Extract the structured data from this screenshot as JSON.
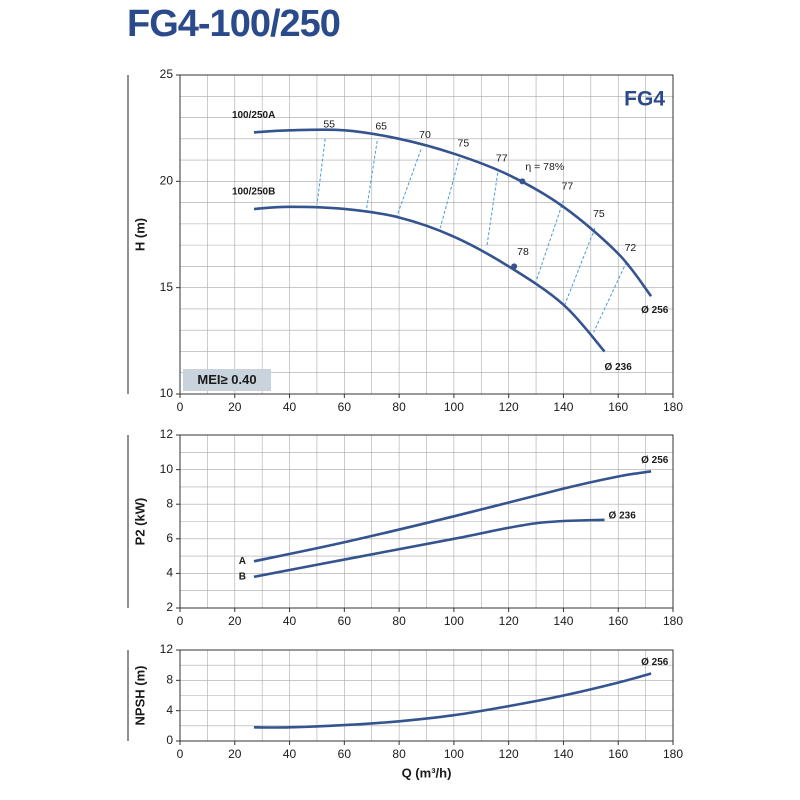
{
  "title": "FG4-100/250",
  "chart_data": [
    {
      "type": "line",
      "ylabel": "H (m)",
      "badge": "FG4",
      "note": "MEI≥ 0.40",
      "xlim": [
        0,
        180
      ],
      "xticks": [
        0,
        20,
        40,
        60,
        80,
        100,
        120,
        140,
        160,
        180
      ],
      "ylim": [
        10,
        25
      ],
      "yticks": [
        10,
        15,
        20,
        25
      ],
      "grid": true,
      "grid_minor": [
        10,
        1
      ],
      "color": "#35548f",
      "series": [
        {
          "name": "100/250A",
          "end_label": "Ø 256",
          "x": [
            27,
            40,
            60,
            80,
            100,
            120,
            140,
            160,
            172
          ],
          "values": [
            22.3,
            22.4,
            22.4,
            22.0,
            21.3,
            20.3,
            18.8,
            16.6,
            14.6
          ]
        },
        {
          "name": "100/250B",
          "end_label": "Ø 236",
          "x": [
            27,
            40,
            60,
            80,
            100,
            120,
            140,
            155
          ],
          "values": [
            18.7,
            18.8,
            18.7,
            18.3,
            17.4,
            16.0,
            14.2,
            12.0
          ]
        }
      ],
      "efficiency_color": "#4b9bd6",
      "efficiency_lines": [
        {
          "label": "55",
          "q": [
            53,
            50
          ],
          "h": [
            22.0,
            18.9
          ]
        },
        {
          "label": "65",
          "q": [
            72,
            68
          ],
          "h": [
            21.9,
            18.6
          ]
        },
        {
          "label": "70",
          "q": [
            88,
            79
          ],
          "h": [
            21.5,
            18.3
          ]
        },
        {
          "label": "75",
          "q": [
            102,
            95
          ],
          "h": [
            21.1,
            17.8
          ]
        },
        {
          "label": "77",
          "q": [
            116,
            112
          ],
          "h": [
            20.4,
            16.9
          ]
        },
        {
          "label": "77",
          "q": [
            140,
            130
          ],
          "h": [
            19.1,
            15.3
          ]
        },
        {
          "label": "75",
          "q": [
            151.5,
            140.5
          ],
          "h": [
            17.8,
            14.2
          ]
        },
        {
          "label": "72",
          "q": [
            163,
            151
          ],
          "h": [
            16.2,
            12.9
          ]
        }
      ],
      "efficiency_points": [
        {
          "label": "η = 78%",
          "q": 125,
          "h": 20.0
        },
        {
          "label": "78",
          "q": 122,
          "h": 16.0
        }
      ]
    },
    {
      "type": "line",
      "ylabel": "P2 (kW)",
      "xlim": [
        0,
        180
      ],
      "xticks": [
        0,
        20,
        40,
        60,
        80,
        100,
        120,
        140,
        160,
        180
      ],
      "ylim": [
        2,
        12
      ],
      "yticks": [
        2,
        4,
        6,
        8,
        10,
        12
      ],
      "grid": true,
      "grid_minor": [
        10,
        1
      ],
      "color": "#35548f",
      "series": [
        {
          "name": "A",
          "end_label": "Ø 256",
          "x": [
            27,
            60,
            100,
            140,
            160,
            172
          ],
          "values": [
            4.7,
            5.8,
            7.3,
            8.9,
            9.6,
            9.9
          ]
        },
        {
          "name": "B",
          "end_label": "Ø 236",
          "x": [
            27,
            60,
            100,
            130,
            155
          ],
          "values": [
            3.8,
            4.8,
            6.0,
            6.9,
            7.1
          ]
        }
      ]
    },
    {
      "type": "line",
      "ylabel": "NPSH (m)",
      "xlabel": "Q (m³/h)",
      "xlim": [
        0,
        180
      ],
      "xticks": [
        0,
        20,
        40,
        60,
        80,
        100,
        120,
        140,
        160,
        180
      ],
      "ylim": [
        0,
        12
      ],
      "yticks": [
        0,
        4,
        8,
        12
      ],
      "grid": true,
      "grid_minor": [
        10,
        2
      ],
      "color": "#35548f",
      "series": [
        {
          "end_label": "Ø 256",
          "x": [
            27,
            40,
            60,
            80,
            100,
            120,
            140,
            160,
            172
          ],
          "values": [
            1.8,
            1.8,
            2.1,
            2.6,
            3.4,
            4.6,
            6.0,
            7.7,
            8.9
          ]
        }
      ]
    }
  ]
}
